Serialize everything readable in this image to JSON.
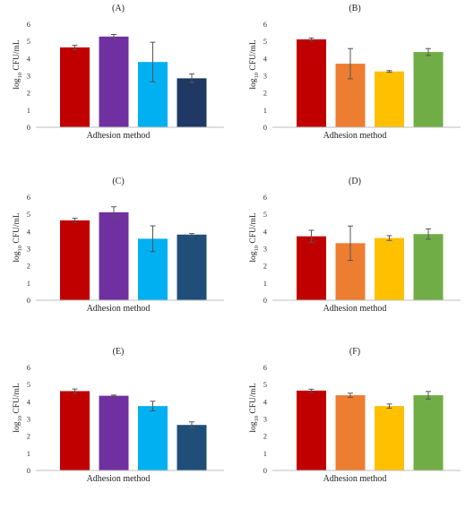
{
  "chart_data": [
    {
      "type": "bar",
      "title": "(A)",
      "xlabel": "Adhesion method",
      "ylabel_prefix": "log",
      "ylabel_sub": "10",
      "ylabel_suffix": " CFU/mL",
      "ylim": [
        0,
        6
      ],
      "yticks": [
        0,
        1,
        2,
        3,
        4,
        5,
        6
      ],
      "grid": false,
      "values": [
        4.65,
        5.28,
        3.8,
        2.85
      ],
      "errors": [
        0.12,
        0.12,
        1.15,
        0.25
      ],
      "colors": [
        "#c00000",
        "#7030a0",
        "#00b0f0",
        "#1f3864"
      ]
    },
    {
      "type": "bar",
      "title": "(B)",
      "xlabel": "Adhesion method",
      "ylabel_prefix": "log",
      "ylabel_sub": "10",
      "ylabel_suffix": " CFU/mL",
      "ylim": [
        0,
        6
      ],
      "yticks": [
        0,
        1,
        2,
        3,
        4,
        5,
        6
      ],
      "grid": false,
      "values": [
        5.12,
        3.7,
        3.25,
        4.38
      ],
      "errors": [
        0.08,
        0.88,
        0.05,
        0.2
      ],
      "colors": [
        "#c00000",
        "#ed7d31",
        "#ffc000",
        "#70ad47"
      ]
    },
    {
      "type": "bar",
      "title": "(C)",
      "xlabel": "Adhesion method",
      "ylabel_prefix": "log",
      "ylabel_sub": "10",
      "ylabel_suffix": " CFU/mL",
      "ylim": [
        0,
        6
      ],
      "yticks": [
        0,
        1,
        2,
        3,
        4,
        5,
        6
      ],
      "grid": false,
      "values": [
        4.65,
        5.12,
        3.58,
        3.82
      ],
      "errors": [
        0.12,
        0.32,
        0.75,
        0.06
      ],
      "colors": [
        "#c00000",
        "#7030a0",
        "#00b0f0",
        "#1f4e79"
      ]
    },
    {
      "type": "bar",
      "title": "(D)",
      "xlabel": "Adhesion method",
      "ylabel_prefix": "log",
      "ylabel_sub": "10",
      "ylabel_suffix": " CFU/mL",
      "ylim": [
        0,
        6
      ],
      "yticks": [
        0,
        1,
        2,
        3,
        4,
        5,
        6
      ],
      "grid": false,
      "values": [
        3.72,
        3.32,
        3.62,
        3.85
      ],
      "errors": [
        0.35,
        1.0,
        0.14,
        0.3
      ],
      "colors": [
        "#c00000",
        "#ed7d31",
        "#ffc000",
        "#70ad47"
      ]
    },
    {
      "type": "bar",
      "title": "(E)",
      "xlabel": "Adhesion method",
      "ylabel_prefix": "log",
      "ylabel_sub": "10",
      "ylabel_suffix": " CFU/mL",
      "ylim": [
        0,
        6
      ],
      "yticks": [
        0,
        1,
        2,
        3,
        4,
        5,
        6
      ],
      "grid": false,
      "values": [
        4.62,
        4.35,
        3.75,
        2.65
      ],
      "errors": [
        0.12,
        0.04,
        0.28,
        0.18
      ],
      "colors": [
        "#c00000",
        "#7030a0",
        "#00b0f0",
        "#1f4e79"
      ]
    },
    {
      "type": "bar",
      "title": "(F)",
      "xlabel": "Adhesion method",
      "ylabel_prefix": "log",
      "ylabel_sub": "10",
      "ylabel_suffix": " CFU/mL",
      "ylim": [
        0,
        6
      ],
      "yticks": [
        0,
        1,
        2,
        3,
        4,
        5,
        6
      ],
      "grid": false,
      "values": [
        4.65,
        4.38,
        3.75,
        4.38
      ],
      "errors": [
        0.08,
        0.12,
        0.12,
        0.22
      ],
      "colors": [
        "#c00000",
        "#ed7d31",
        "#ffc000",
        "#70ad47"
      ]
    }
  ]
}
